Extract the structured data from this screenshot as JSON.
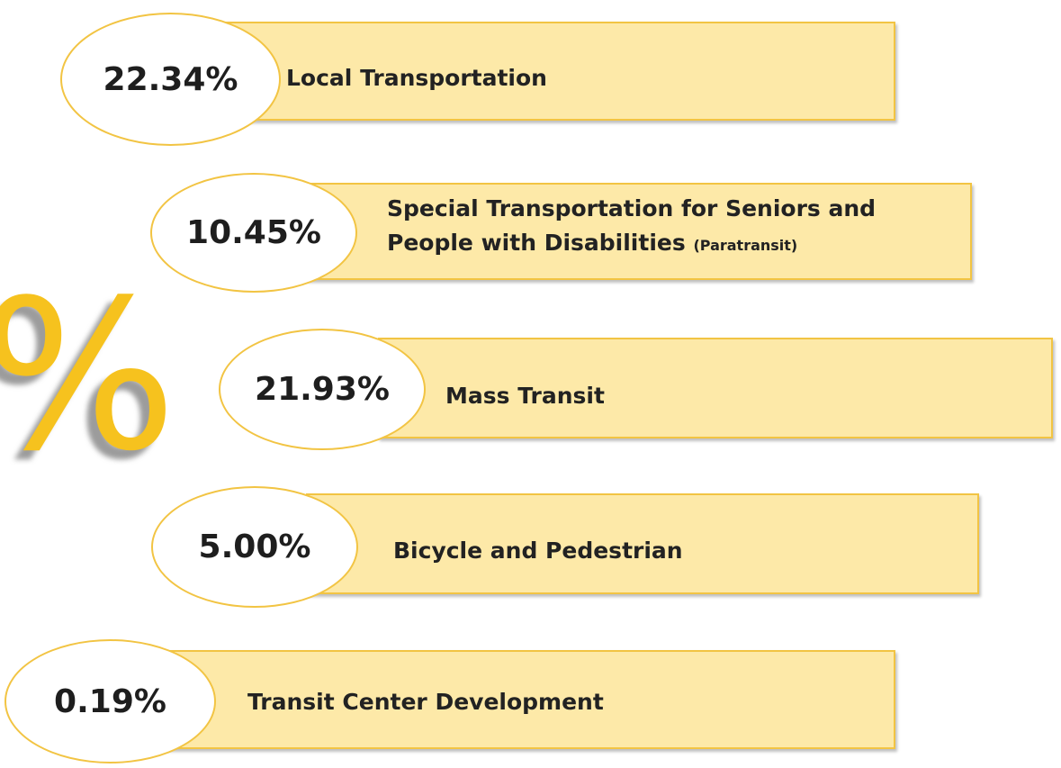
{
  "decoration": "%",
  "items": [
    {
      "percent": "22.34%",
      "label": "Local Transportation"
    },
    {
      "percent": "10.45%",
      "label": "Special Transportation for Seniors and People with Disabilities",
      "note": "(Paratransit)"
    },
    {
      "percent": "21.93%",
      "label": "Mass Transit"
    },
    {
      "percent": "5.00%",
      "label": "Bicycle and Pedestrian"
    },
    {
      "percent": "0.19%",
      "label": "Transit Center Development"
    }
  ]
}
